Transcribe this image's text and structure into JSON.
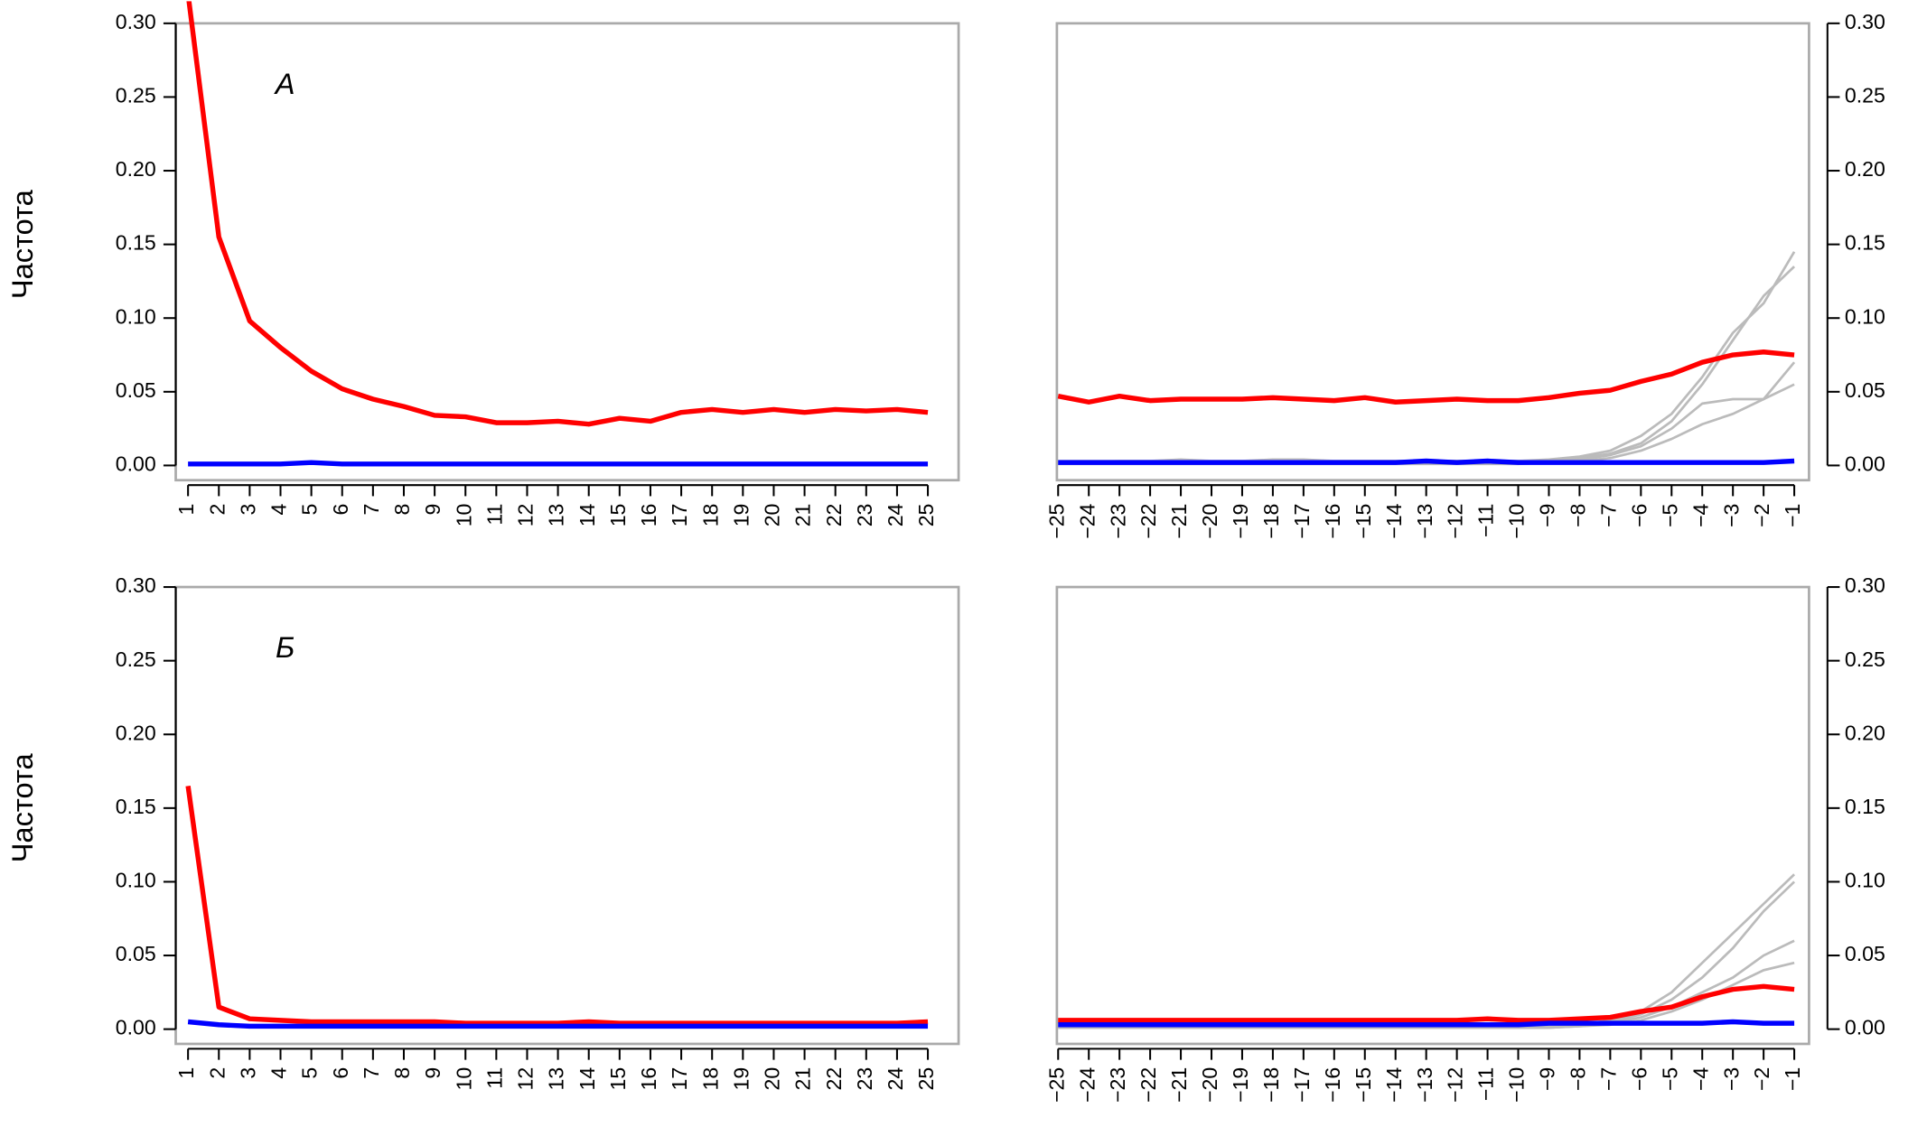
{
  "chart_data": [
    {
      "type": "line",
      "ylabel": "Частота",
      "panel_label": "А",
      "y_axis_side": "left",
      "x": [
        1,
        2,
        3,
        4,
        5,
        6,
        7,
        8,
        9,
        10,
        11,
        12,
        13,
        14,
        15,
        16,
        17,
        18,
        19,
        20,
        21,
        22,
        23,
        24,
        25
      ],
      "xlim": [
        1,
        25
      ],
      "xticks": [
        1,
        2,
        3,
        4,
        5,
        6,
        7,
        8,
        9,
        10,
        11,
        12,
        13,
        14,
        15,
        16,
        17,
        18,
        19,
        20,
        21,
        22,
        23,
        24,
        25
      ],
      "ylim": [
        0,
        0.3
      ],
      "yticks": [
        {
          "value": 0,
          "label": "0.00"
        },
        {
          "value": 0.05,
          "label": "0.05"
        },
        {
          "value": 0.1,
          "label": "0.10"
        },
        {
          "value": 0.15,
          "label": "0.15"
        },
        {
          "value": 0.2,
          "label": "0.20"
        },
        {
          "value": 0.25,
          "label": "0.25"
        },
        {
          "value": 0.3,
          "label": "0.30"
        }
      ],
      "series": [
        {
          "color": "#ff0000",
          "values": [
            0.32,
            0.155,
            0.098,
            0.08,
            0.064,
            0.052,
            0.045,
            0.04,
            0.034,
            0.033,
            0.029,
            0.029,
            0.03,
            0.028,
            0.032,
            0.03,
            0.036,
            0.038,
            0.036,
            0.038,
            0.036,
            0.038,
            0.037,
            0.038,
            0.036
          ]
        },
        {
          "color": "#0000ff",
          "values": [
            0.001,
            0.001,
            0.001,
            0.001,
            0.002,
            0.001,
            0.001,
            0.001,
            0.001,
            0.001,
            0.001,
            0.001,
            0.001,
            0.001,
            0.001,
            0.001,
            0.001,
            0.001,
            0.001,
            0.001,
            0.001,
            0.001,
            0.001,
            0.001,
            0.001
          ]
        }
      ]
    },
    {
      "type": "line",
      "y_axis_side": "right",
      "x": [
        -25,
        -24,
        -23,
        -22,
        -21,
        -20,
        -19,
        -18,
        -17,
        -16,
        -15,
        -14,
        -13,
        -12,
        -11,
        -10,
        -9,
        -8,
        -7,
        -6,
        -5,
        -4,
        -3,
        -2,
        -1
      ],
      "xlim": [
        -25,
        -1
      ],
      "xticks": [
        {
          "value": -25,
          "label": "−25"
        },
        {
          "value": -24,
          "label": "−24"
        },
        {
          "value": -23,
          "label": "−23"
        },
        {
          "value": -22,
          "label": "−22"
        },
        {
          "value": -21,
          "label": "−21"
        },
        {
          "value": -20,
          "label": "−20"
        },
        {
          "value": -19,
          "label": "−19"
        },
        {
          "value": -18,
          "label": "−18"
        },
        {
          "value": -17,
          "label": "−17"
        },
        {
          "value": -16,
          "label": "−16"
        },
        {
          "value": -15,
          "label": "−15"
        },
        {
          "value": -14,
          "label": "−14"
        },
        {
          "value": -13,
          "label": "−13"
        },
        {
          "value": -12,
          "label": "−12"
        },
        {
          "value": -11,
          "label": "−11"
        },
        {
          "value": -10,
          "label": "−10"
        },
        {
          "value": -9,
          "label": "−9"
        },
        {
          "value": -8,
          "label": "−8"
        },
        {
          "value": -7,
          "label": "−7"
        },
        {
          "value": -6,
          "label": "−6"
        },
        {
          "value": -5,
          "label": "−5"
        },
        {
          "value": -4,
          "label": "−4"
        },
        {
          "value": -3,
          "label": "−3"
        },
        {
          "value": -2,
          "label": "−2"
        },
        {
          "value": -1,
          "label": "−1"
        }
      ],
      "ylim": [
        0,
        0.3
      ],
      "yticks": [
        {
          "value": 0,
          "label": "0.00"
        },
        {
          "value": 0.05,
          "label": "0.05"
        },
        {
          "value": 0.1,
          "label": "0.10"
        },
        {
          "value": 0.15,
          "label": "0.15"
        },
        {
          "value": 0.2,
          "label": "0.20"
        },
        {
          "value": 0.25,
          "label": "0.25"
        },
        {
          "value": 0.3,
          "label": "0.30"
        }
      ],
      "series": [
        {
          "color": "#bbbbbb",
          "values": [
            0.003,
            0.003,
            0.003,
            0.003,
            0.004,
            0.003,
            0.003,
            0.004,
            0.004,
            0.003,
            0.003,
            0.003,
            0.003,
            0.003,
            0.003,
            0.003,
            0.004,
            0.006,
            0.01,
            0.02,
            0.035,
            0.06,
            0.09,
            0.11,
            0.145
          ]
        },
        {
          "color": "#bbbbbb",
          "values": [
            0.002,
            0.002,
            0.003,
            0.003,
            0.003,
            0.003,
            0.003,
            0.003,
            0.003,
            0.003,
            0.003,
            0.003,
            0.003,
            0.003,
            0.003,
            0.003,
            0.003,
            0.005,
            0.008,
            0.015,
            0.03,
            0.055,
            0.085,
            0.115,
            0.135
          ]
        },
        {
          "color": "#bbbbbb",
          "values": [
            0.002,
            0.002,
            0.002,
            0.002,
            0.002,
            0.002,
            0.002,
            0.002,
            0.002,
            0.002,
            0.002,
            0.002,
            0.002,
            0.002,
            0.002,
            0.002,
            0.003,
            0.004,
            0.007,
            0.013,
            0.025,
            0.042,
            0.045,
            0.045,
            0.07
          ]
        },
        {
          "color": "#bbbbbb",
          "values": [
            0.001,
            0.001,
            0.001,
            0.001,
            0.001,
            0.001,
            0.001,
            0.001,
            0.001,
            0.001,
            0.001,
            0.001,
            0.001,
            0.001,
            0.001,
            0.001,
            0.002,
            0.003,
            0.005,
            0.01,
            0.018,
            0.028,
            0.035,
            0.045,
            0.055
          ]
        },
        {
          "color": "#ff0000",
          "values": [
            0.047,
            0.043,
            0.047,
            0.044,
            0.045,
            0.045,
            0.045,
            0.046,
            0.045,
            0.044,
            0.046,
            0.043,
            0.044,
            0.045,
            0.044,
            0.044,
            0.046,
            0.049,
            0.051,
            0.057,
            0.062,
            0.07,
            0.075,
            0.077,
            0.075
          ]
        },
        {
          "color": "#0000ff",
          "values": [
            0.002,
            0.002,
            0.002,
            0.002,
            0.002,
            0.002,
            0.002,
            0.002,
            0.002,
            0.002,
            0.002,
            0.002,
            0.003,
            0.002,
            0.003,
            0.002,
            0.002,
            0.002,
            0.002,
            0.002,
            0.002,
            0.002,
            0.002,
            0.002,
            0.003
          ]
        }
      ]
    },
    {
      "type": "line",
      "ylabel": "Частота",
      "panel_label": "Б",
      "y_axis_side": "left",
      "x": [
        1,
        2,
        3,
        4,
        5,
        6,
        7,
        8,
        9,
        10,
        11,
        12,
        13,
        14,
        15,
        16,
        17,
        18,
        19,
        20,
        21,
        22,
        23,
        24,
        25
      ],
      "xlim": [
        1,
        25
      ],
      "xticks": [
        1,
        2,
        3,
        4,
        5,
        6,
        7,
        8,
        9,
        10,
        11,
        12,
        13,
        14,
        15,
        16,
        17,
        18,
        19,
        20,
        21,
        22,
        23,
        24,
        25
      ],
      "ylim": [
        0,
        0.3
      ],
      "yticks": [
        {
          "value": 0,
          "label": "0.00"
        },
        {
          "value": 0.05,
          "label": "0.05"
        },
        {
          "value": 0.1,
          "label": "0.10"
        },
        {
          "value": 0.15,
          "label": "0.15"
        },
        {
          "value": 0.2,
          "label": "0.20"
        },
        {
          "value": 0.25,
          "label": "0.25"
        },
        {
          "value": 0.3,
          "label": "0.30"
        }
      ],
      "series": [
        {
          "color": "#ff0000",
          "values": [
            0.165,
            0.015,
            0.007,
            0.006,
            0.005,
            0.005,
            0.005,
            0.005,
            0.005,
            0.004,
            0.004,
            0.004,
            0.004,
            0.005,
            0.004,
            0.004,
            0.004,
            0.004,
            0.004,
            0.004,
            0.004,
            0.004,
            0.004,
            0.004,
            0.005
          ]
        },
        {
          "color": "#0000ff",
          "values": [
            0.005,
            0.003,
            0.002,
            0.002,
            0.002,
            0.002,
            0.002,
            0.002,
            0.002,
            0.002,
            0.002,
            0.002,
            0.002,
            0.002,
            0.002,
            0.002,
            0.002,
            0.002,
            0.002,
            0.002,
            0.002,
            0.002,
            0.002,
            0.002,
            0.002
          ]
        }
      ]
    },
    {
      "type": "line",
      "y_axis_side": "right",
      "x": [
        -25,
        -24,
        -23,
        -22,
        -21,
        -20,
        -19,
        -18,
        -17,
        -16,
        -15,
        -14,
        -13,
        -12,
        -11,
        -10,
        -9,
        -8,
        -7,
        -6,
        -5,
        -4,
        -3,
        -2,
        -1
      ],
      "xlim": [
        -25,
        -1
      ],
      "xticks": [
        {
          "value": -25,
          "label": "−25"
        },
        {
          "value": -24,
          "label": "−24"
        },
        {
          "value": -23,
          "label": "−23"
        },
        {
          "value": -22,
          "label": "−22"
        },
        {
          "value": -21,
          "label": "−21"
        },
        {
          "value": -20,
          "label": "−20"
        },
        {
          "value": -19,
          "label": "−19"
        },
        {
          "value": -18,
          "label": "−18"
        },
        {
          "value": -17,
          "label": "−17"
        },
        {
          "value": -16,
          "label": "−16"
        },
        {
          "value": -15,
          "label": "−15"
        },
        {
          "value": -14,
          "label": "−14"
        },
        {
          "value": -13,
          "label": "−13"
        },
        {
          "value": -12,
          "label": "−12"
        },
        {
          "value": -11,
          "label": "−11"
        },
        {
          "value": -10,
          "label": "−10"
        },
        {
          "value": -9,
          "label": "−9"
        },
        {
          "value": -8,
          "label": "−8"
        },
        {
          "value": -7,
          "label": "−7"
        },
        {
          "value": -6,
          "label": "−6"
        },
        {
          "value": -5,
          "label": "−5"
        },
        {
          "value": -4,
          "label": "−4"
        },
        {
          "value": -3,
          "label": "−3"
        },
        {
          "value": -2,
          "label": "−2"
        },
        {
          "value": -1,
          "label": "−1"
        }
      ],
      "ylim": [
        0,
        0.3
      ],
      "yticks": [
        {
          "value": 0,
          "label": "0.00"
        },
        {
          "value": 0.05,
          "label": "0.05"
        },
        {
          "value": 0.1,
          "label": "0.10"
        },
        {
          "value": 0.15,
          "label": "0.15"
        },
        {
          "value": 0.2,
          "label": "0.20"
        },
        {
          "value": 0.25,
          "label": "0.25"
        },
        {
          "value": 0.3,
          "label": "0.30"
        }
      ],
      "series": [
        {
          "color": "#bbbbbb",
          "values": [
            0.002,
            0.002,
            0.002,
            0.002,
            0.002,
            0.002,
            0.002,
            0.002,
            0.002,
            0.002,
            0.002,
            0.002,
            0.002,
            0.002,
            0.002,
            0.002,
            0.002,
            0.003,
            0.006,
            0.012,
            0.025,
            0.045,
            0.065,
            0.085,
            0.105
          ]
        },
        {
          "color": "#bbbbbb",
          "values": [
            0.001,
            0.001,
            0.001,
            0.001,
            0.001,
            0.001,
            0.001,
            0.001,
            0.001,
            0.001,
            0.001,
            0.001,
            0.001,
            0.001,
            0.001,
            0.001,
            0.002,
            0.003,
            0.005,
            0.01,
            0.02,
            0.035,
            0.055,
            0.08,
            0.1
          ]
        },
        {
          "color": "#bbbbbb",
          "values": [
            0.001,
            0.001,
            0.001,
            0.001,
            0.001,
            0.001,
            0.001,
            0.001,
            0.001,
            0.001,
            0.001,
            0.001,
            0.001,
            0.001,
            0.001,
            0.001,
            0.001,
            0.002,
            0.004,
            0.008,
            0.015,
            0.025,
            0.035,
            0.05,
            0.06
          ]
        },
        {
          "color": "#bbbbbb",
          "values": [
            0.001,
            0.001,
            0.001,
            0.001,
            0.001,
            0.001,
            0.001,
            0.001,
            0.001,
            0.001,
            0.001,
            0.001,
            0.001,
            0.001,
            0.001,
            0.001,
            0.001,
            0.002,
            0.003,
            0.006,
            0.012,
            0.02,
            0.03,
            0.04,
            0.045
          ]
        },
        {
          "color": "#ff0000",
          "values": [
            0.006,
            0.006,
            0.006,
            0.006,
            0.006,
            0.006,
            0.006,
            0.006,
            0.006,
            0.006,
            0.006,
            0.006,
            0.006,
            0.006,
            0.007,
            0.006,
            0.006,
            0.007,
            0.008,
            0.012,
            0.015,
            0.022,
            0.027,
            0.029,
            0.027
          ]
        },
        {
          "color": "#0000ff",
          "values": [
            0.003,
            0.003,
            0.003,
            0.003,
            0.003,
            0.003,
            0.003,
            0.003,
            0.003,
            0.003,
            0.003,
            0.003,
            0.003,
            0.003,
            0.003,
            0.003,
            0.004,
            0.004,
            0.004,
            0.004,
            0.004,
            0.004,
            0.005,
            0.004,
            0.004
          ]
        }
      ]
    }
  ]
}
